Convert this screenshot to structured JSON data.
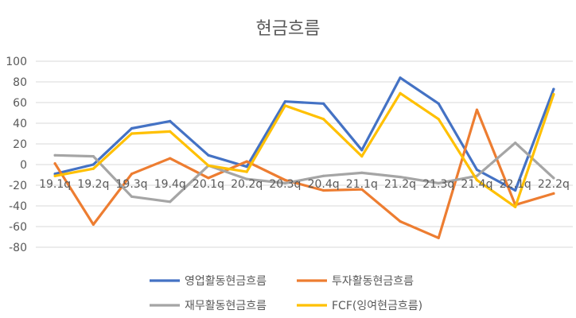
{
  "chart_data": {
    "type": "line",
    "title": "현금흐름",
    "categories": [
      "19.1q",
      "19.2q",
      "19.3q",
      "19.4q",
      "20.1q",
      "20.2q",
      "20.3q",
      "20.4q",
      "21.1q",
      "21.2q",
      "21.3q",
      "21.4q",
      "22.1q",
      "22.2q"
    ],
    "ylim": [
      -80,
      100
    ],
    "yticks": [
      100,
      80,
      60,
      40,
      20,
      0,
      -20,
      -40,
      -60,
      -80
    ],
    "grid": true,
    "legend_position": "bottom",
    "series": [
      {
        "name": "영업활동현금흐름",
        "color": "#4472C4",
        "values": [
          -9,
          0,
          35,
          42,
          9,
          -2,
          61,
          59,
          14,
          84,
          59,
          -5,
          -25,
          73
        ]
      },
      {
        "name": "투자활동현금흐름",
        "color": "#ED7D31",
        "values": [
          1,
          -58,
          -9,
          6,
          -13,
          3,
          -15,
          -25,
          -24,
          -55,
          -71,
          53,
          -39,
          -28
        ]
      },
      {
        "name": "재무활동현금흐름",
        "color": "#A5A5A5",
        "values": [
          9,
          8,
          -31,
          -36,
          -1,
          -14,
          -18,
          -11,
          -8,
          -12,
          -18,
          -11,
          21,
          -13
        ]
      },
      {
        "name": "FCF(잉여현금흐름)",
        "color": "#FFC000",
        "values": [
          -11,
          -4,
          30,
          32,
          -1,
          -7,
          57,
          44,
          8,
          69,
          44,
          -15,
          -41,
          68
        ]
      }
    ]
  }
}
